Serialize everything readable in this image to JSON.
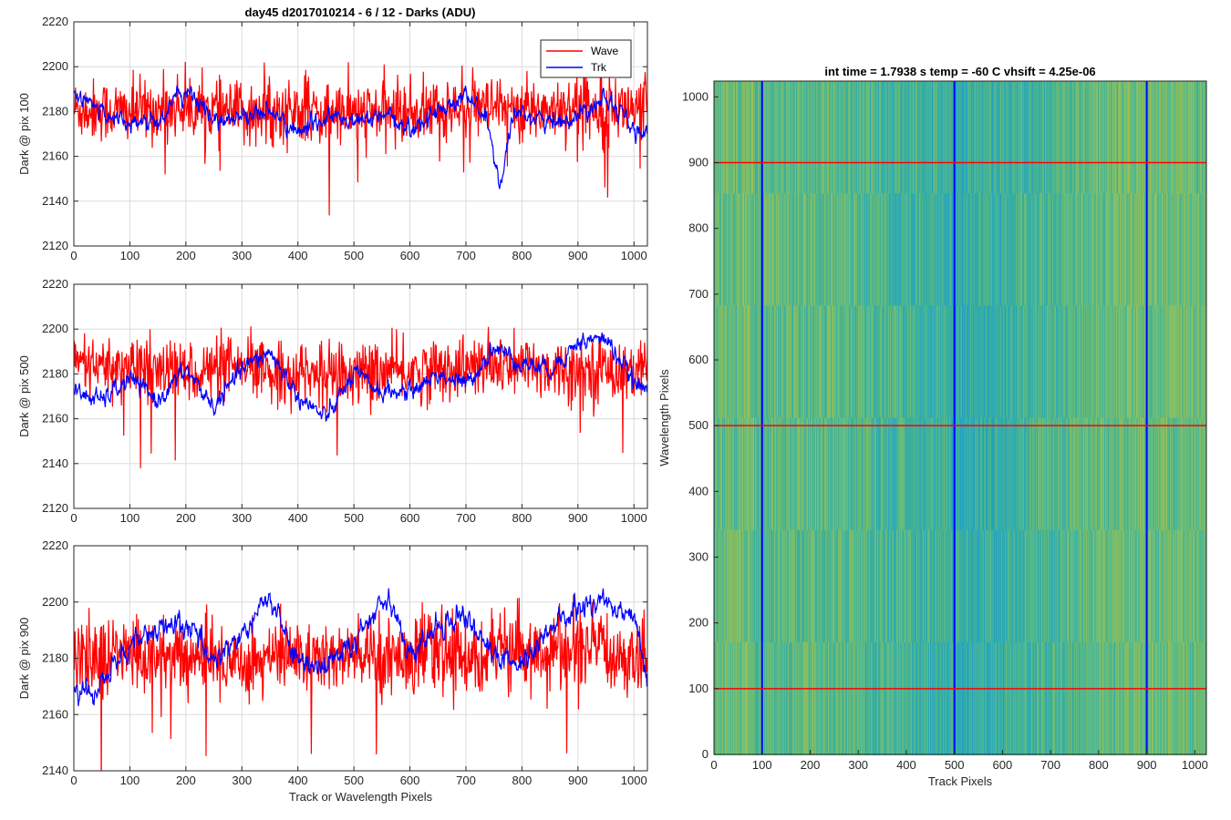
{
  "figure_title": "day45 d2017010214 - 6 / 12 - Darks (ADU)",
  "colors": {
    "wave": "#ff0000",
    "trk": "#0000ff"
  },
  "chart_data": [
    {
      "type": "line",
      "ylabel": "Dark @ pix 100",
      "xlabel": "",
      "xlim": [
        0,
        1024
      ],
      "ylim": [
        2120,
        2220
      ],
      "xticks": [
        0,
        100,
        200,
        300,
        400,
        500,
        600,
        700,
        800,
        900,
        1000
      ],
      "yticks": [
        2120,
        2140,
        2160,
        2180,
        2200,
        2220
      ],
      "grid": true,
      "legend": {
        "placement": "top-right",
        "entries": [
          "Wave",
          "Trk"
        ]
      },
      "series": [
        {
          "name": "Wave",
          "mean": 2180,
          "noise_sd": 7,
          "x": [
            0,
            100,
            200,
            300,
            400,
            500,
            600,
            700,
            800,
            900,
            1024
          ],
          "y": [
            2181,
            2180,
            2182,
            2179,
            2180,
            2179,
            2180,
            2181,
            2180,
            2183,
            2181
          ]
        },
        {
          "name": "Trk",
          "mean": 2178,
          "noise_sd": 4,
          "x": [
            0,
            50,
            100,
            150,
            200,
            250,
            300,
            350,
            400,
            450,
            500,
            550,
            600,
            650,
            700,
            740,
            760,
            780,
            800,
            850,
            900,
            950,
            1000,
            1024
          ],
          "y": [
            2188,
            2180,
            2175,
            2176,
            2190,
            2176,
            2178,
            2180,
            2170,
            2178,
            2175,
            2178,
            2172,
            2180,
            2188,
            2175,
            2145,
            2172,
            2180,
            2175,
            2178,
            2188,
            2172,
            2168
          ]
        }
      ]
    },
    {
      "type": "line",
      "ylabel": "Dark @ pix 500",
      "xlabel": "",
      "xlim": [
        0,
        1024
      ],
      "ylim": [
        2120,
        2220
      ],
      "xticks": [
        0,
        100,
        200,
        300,
        400,
        500,
        600,
        700,
        800,
        900,
        1000
      ],
      "yticks": [
        2120,
        2140,
        2160,
        2180,
        2200,
        2220
      ],
      "grid": true,
      "series": [
        {
          "name": "Wave",
          "mean": 2182,
          "noise_sd": 7,
          "x": [
            0,
            100,
            200,
            300,
            400,
            500,
            600,
            700,
            800,
            900,
            1024
          ],
          "y": [
            2183,
            2182,
            2181,
            2182,
            2180,
            2180,
            2181,
            2183,
            2183,
            2182,
            2182
          ]
        },
        {
          "name": "Trk",
          "mean": 2177,
          "noise_sd": 4,
          "x": [
            0,
            50,
            100,
            150,
            200,
            250,
            300,
            350,
            400,
            450,
            500,
            550,
            600,
            650,
            700,
            750,
            800,
            850,
            900,
            950,
            1000,
            1024
          ],
          "y": [
            2172,
            2168,
            2178,
            2168,
            2182,
            2165,
            2182,
            2190,
            2170,
            2160,
            2180,
            2172,
            2172,
            2180,
            2175,
            2192,
            2185,
            2182,
            2194,
            2196,
            2176,
            2172
          ]
        }
      ]
    },
    {
      "type": "line",
      "ylabel": "Dark @ pix 900",
      "xlabel": "Track or Wavelength Pixels",
      "xlim": [
        0,
        1024
      ],
      "ylim": [
        2140,
        2220
      ],
      "xticks": [
        0,
        100,
        200,
        300,
        400,
        500,
        600,
        700,
        800,
        900,
        1000
      ],
      "yticks": [
        2140,
        2160,
        2180,
        2200,
        2220
      ],
      "grid": true,
      "series": [
        {
          "name": "Wave",
          "mean": 2181,
          "noise_sd": 7,
          "x": [
            0,
            100,
            200,
            300,
            400,
            500,
            600,
            700,
            800,
            900,
            1024
          ],
          "y": [
            2180,
            2182,
            2180,
            2179,
            2181,
            2180,
            2182,
            2181,
            2182,
            2183,
            2181
          ]
        },
        {
          "name": "Trk",
          "mean": 2186,
          "noise_sd": 4,
          "x": [
            0,
            30,
            100,
            150,
            200,
            250,
            300,
            350,
            400,
            450,
            500,
            560,
            600,
            650,
            700,
            750,
            800,
            850,
            900,
            950,
            1000,
            1024
          ],
          "y": [
            2170,
            2166,
            2185,
            2190,
            2192,
            2180,
            2188,
            2202,
            2178,
            2178,
            2185,
            2204,
            2180,
            2192,
            2196,
            2180,
            2178,
            2190,
            2198,
            2200,
            2196,
            2172
          ]
        }
      ]
    },
    {
      "type": "heatmap",
      "title": "int time = 1.7938 s    temp = -60 C    vhsift = 4.25e-06",
      "xlabel": "Track Pixels",
      "ylabel": "Wavelength Pixels",
      "xlim": [
        0,
        1024
      ],
      "ylim": [
        0,
        1024
      ],
      "xticks": [
        0,
        100,
        200,
        300,
        400,
        500,
        600,
        700,
        800,
        900,
        1000
      ],
      "yticks": [
        0,
        100,
        200,
        300,
        400,
        500,
        600,
        700,
        800,
        900,
        1000
      ],
      "colormap": "parula",
      "vertical_lines": {
        "x": [
          100,
          500,
          900
        ],
        "color": "#0000ff"
      },
      "horizontal_lines": {
        "y": [
          100,
          500,
          900
        ],
        "color": "#ff0000"
      }
    }
  ]
}
